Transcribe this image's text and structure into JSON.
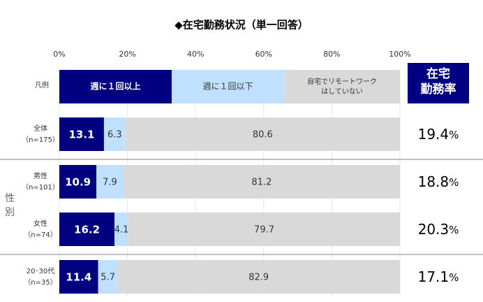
{
  "chart_data": {
    "type": "bar",
    "orientation": "horizontal-stacked-100",
    "title": "◆在宅勤務状況（単一回答）",
    "xlim": [
      0,
      100
    ],
    "x_ticks": [
      "0%",
      "20%",
      "40%",
      "60%",
      "80%",
      "100%"
    ],
    "legend": {
      "label": "凡例",
      "placement": "top",
      "entries": [
        {
          "name": "週に１回以上",
          "color": "#000080"
        },
        {
          "name": "週に１回以下",
          "color": "#bfe0ff"
        },
        {
          "name": "自宅でリモートワーク\nはしていない",
          "color": "#d9d9d9"
        }
      ]
    },
    "rate_header": "在宅\n勤務率",
    "rate_header_color": "#000080",
    "group_label": "性別",
    "rows": [
      {
        "label": "全体",
        "n": "（n=175）",
        "values": [
          13.1,
          6.3,
          80.6
        ],
        "labels": [
          "13.1",
          "6.3",
          "80.6"
        ],
        "rate": "19.4",
        "rate_unit": "%"
      },
      {
        "label": "男性",
        "n": "（n=101）",
        "values": [
          10.9,
          7.9,
          81.2
        ],
        "labels": [
          "10.9",
          "7.9",
          "81.2"
        ],
        "rate": "18.8",
        "rate_unit": "%"
      },
      {
        "label": "女性",
        "n": "（n=74）",
        "values": [
          16.2,
          4.1,
          79.7
        ],
        "labels": [
          "16.2",
          "4.1",
          "79.7"
        ],
        "rate": "20.3",
        "rate_unit": "%"
      },
      {
        "label": "20･30代",
        "n": "（n=35）",
        "values": [
          11.4,
          5.7,
          82.9
        ],
        "labels": [
          "11.4",
          "5.7",
          "82.9"
        ],
        "rate": "17.1",
        "rate_unit": "%"
      }
    ],
    "series_colors": [
      "#000080",
      "#bfe0ff",
      "#d9d9d9"
    ],
    "label_colors": [
      "#ffffff",
      "#333333",
      "#333333"
    ],
    "grid": true
  }
}
